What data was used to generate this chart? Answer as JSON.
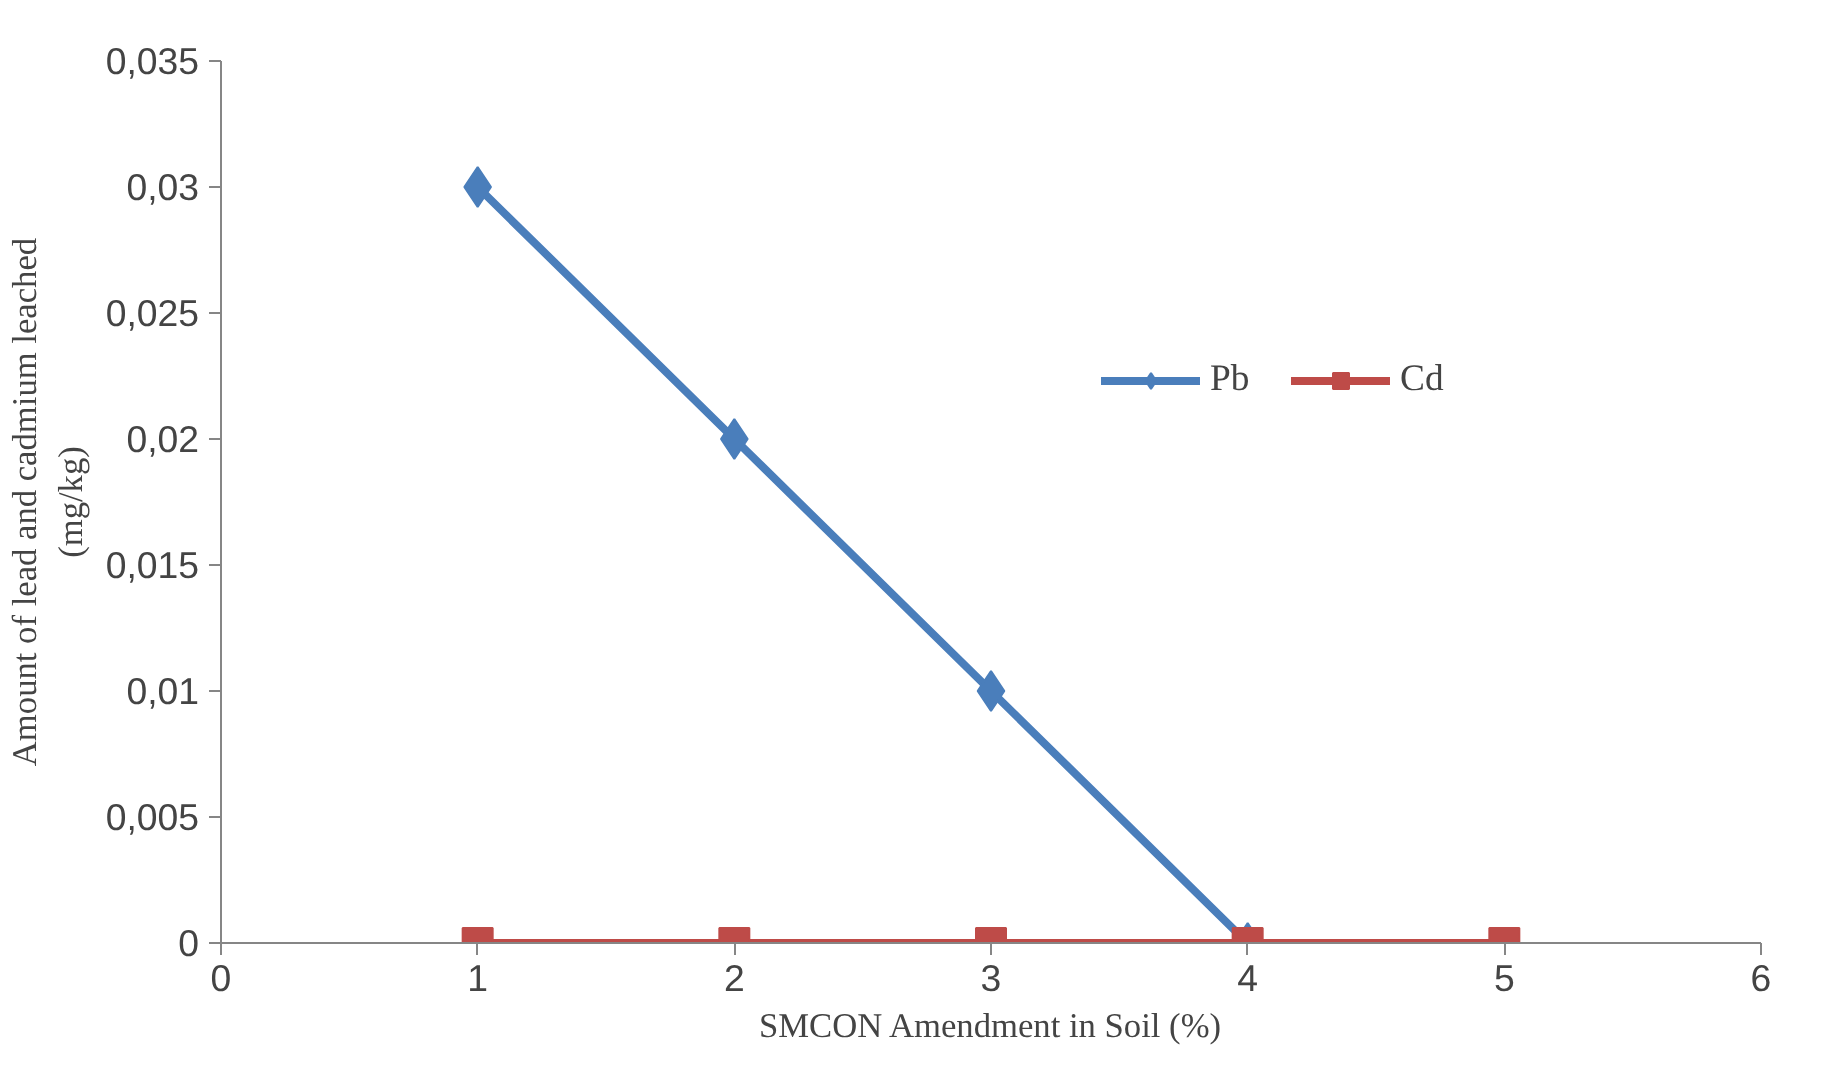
{
  "chart_data": {
    "type": "line",
    "xlabel": "SMCON Amendment in Soil (%)",
    "ylabel": "Amount of lead and cadmium leached (mg/kg)",
    "xlim": [
      0,
      6
    ],
    "xticks": [
      0,
      1,
      2,
      3,
      4,
      5,
      6
    ],
    "ylim": [
      0,
      0.035
    ],
    "yticks": [
      0,
      {
        "value": 0.005,
        "label": "0,005"
      },
      {
        "value": 0.01,
        "label": "0,01"
      },
      {
        "value": 0.015,
        "label": "0,015"
      },
      {
        "value": 0.02,
        "label": "0,02"
      },
      {
        "value": 0.025,
        "label": "0,025"
      },
      {
        "value": 0.03,
        "label": "0,03"
      },
      {
        "value": 0.035,
        "label": "0,035"
      }
    ],
    "grid": false,
    "legend": "top right",
    "line_style": "solid",
    "series": [
      {
        "name": "Pb",
        "color": "#4a7ebb",
        "marker": "diamond",
        "x": [
          1,
          2,
          3,
          4
        ],
        "values": [
          0.03,
          0.02,
          0.01,
          0
        ]
      },
      {
        "name": "Cd",
        "color": "#be4b48",
        "marker": "square",
        "x": [
          1,
          2,
          3,
          4,
          5
        ],
        "values": [
          0,
          0,
          0,
          0,
          0
        ]
      }
    ]
  }
}
